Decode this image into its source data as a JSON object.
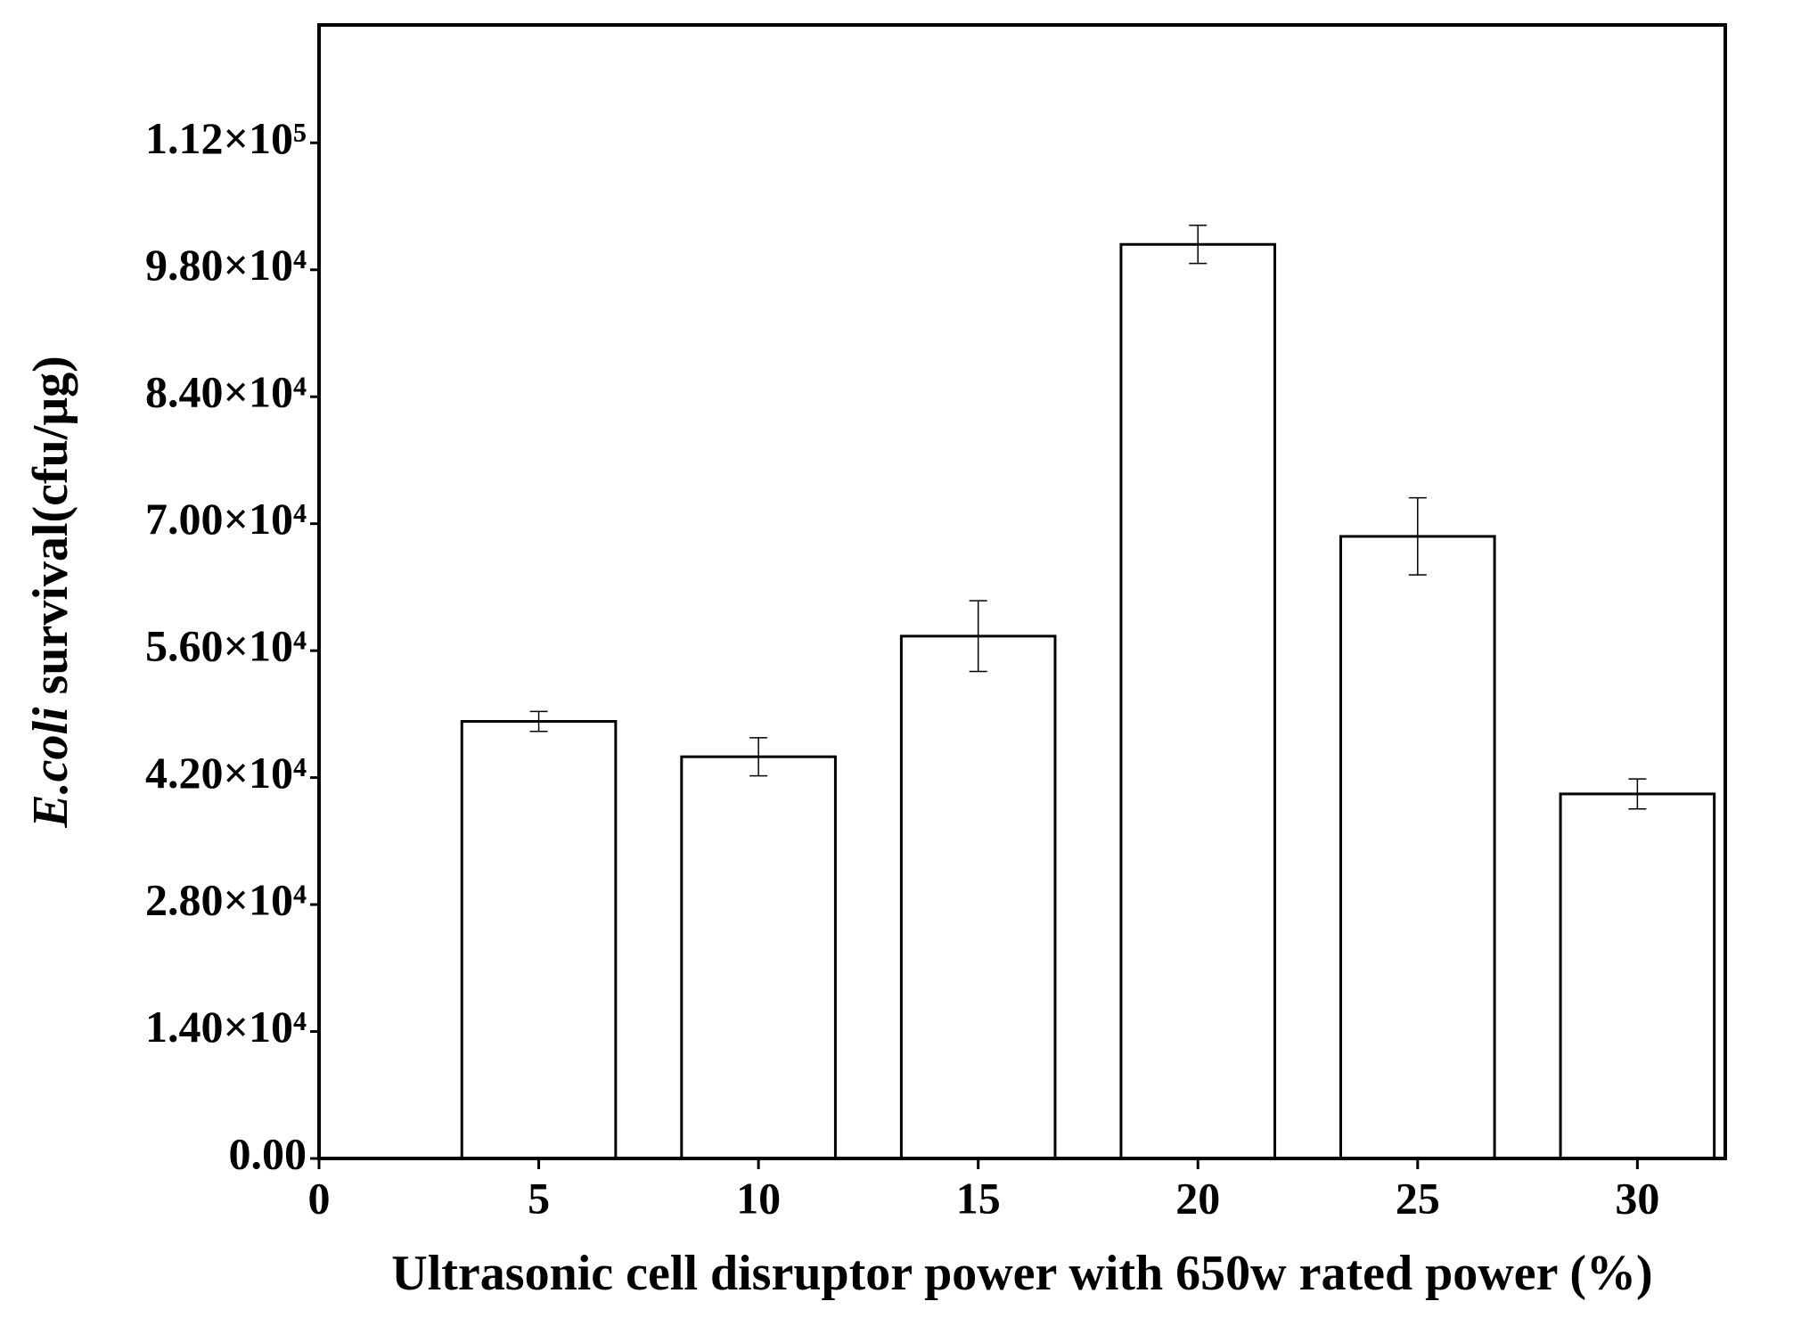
{
  "chart_data": {
    "type": "bar",
    "xlabel": "Ultrasonic cell disruptor power  with 650w rated power (%)",
    "ylabel_italic": "E.coli",
    "ylabel": "survival(cfu/μg)",
    "x": [
      5,
      10,
      15,
      20,
      25,
      30
    ],
    "values": [
      48200,
      44300,
      57600,
      100800,
      68600,
      40200
    ],
    "errors": [
      1100,
      2100,
      3900,
      2100,
      4250,
      1650
    ],
    "color": "#ffffff",
    "edgecolor": "#000000",
    "xlim": [
      0,
      32
    ],
    "xticks": [
      0,
      5,
      10,
      15,
      20,
      25,
      30
    ],
    "ylim": [
      0,
      125000
    ],
    "yticks": [
      {
        "value": 0,
        "label": "0.00"
      },
      {
        "value": 14000,
        "label": "1.40×10⁴"
      },
      {
        "value": 28000,
        "label": "2.80×10⁴"
      },
      {
        "value": 42000,
        "label": "4.20×10⁴"
      },
      {
        "value": 56000,
        "label": "5.60×10⁴"
      },
      {
        "value": 70000,
        "label": "7.00×10⁴"
      },
      {
        "value": 84000,
        "label": "8.40×10⁴"
      },
      {
        "value": 98000,
        "label": "9.80×10⁴"
      },
      {
        "value": 112000,
        "label": "1.12×10⁵"
      }
    ],
    "grid": false
  }
}
